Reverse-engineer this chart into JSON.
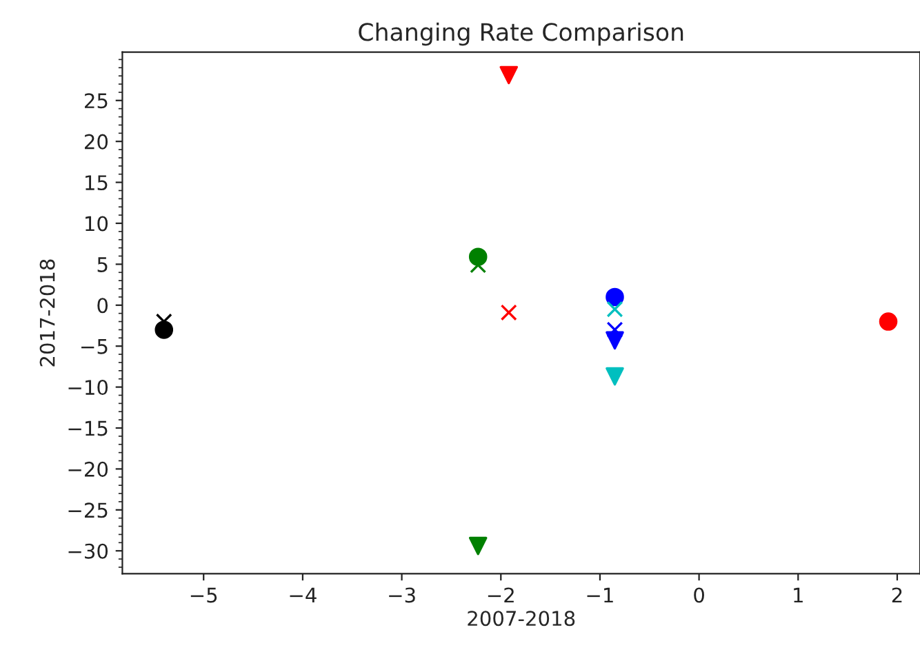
{
  "chart_data": {
    "type": "scatter",
    "title": "Changing Rate Comparison",
    "xlabel": "2007-2018",
    "ylabel": "2017-2018",
    "series": [
      {
        "color": "#000000",
        "marker": "circle",
        "x": [
          -5.4
        ],
        "values": [
          -3.0
        ]
      },
      {
        "color": "#000000",
        "marker": "cross",
        "x": [
          -5.4
        ],
        "values": [
          -2.0
        ]
      },
      {
        "color": "#008000",
        "marker": "circle",
        "x": [
          -2.23
        ],
        "values": [
          5.9
        ]
      },
      {
        "color": "#008000",
        "marker": "cross",
        "x": [
          -2.23
        ],
        "values": [
          4.9
        ]
      },
      {
        "color": "#008000",
        "marker": "triangle",
        "x": [
          -2.23
        ],
        "values": [
          -29.4
        ]
      },
      {
        "color": "#ff0000",
        "marker": "triangle",
        "x": [
          -1.92
        ],
        "values": [
          28.1
        ]
      },
      {
        "color": "#ff0000",
        "marker": "cross",
        "x": [
          -1.92
        ],
        "values": [
          -0.9
        ]
      },
      {
        "color": "#ff0000",
        "marker": "circle",
        "x": [
          1.91
        ],
        "values": [
          -2.0
        ]
      },
      {
        "color": "#0000ff",
        "marker": "circle",
        "x": [
          -0.85
        ],
        "values": [
          1.0
        ]
      },
      {
        "color": "#00bfbf",
        "marker": "cross",
        "x": [
          -0.85
        ],
        "values": [
          -0.5
        ]
      },
      {
        "color": "#0000ff",
        "marker": "cross",
        "x": [
          -0.85
        ],
        "values": [
          -3.0
        ]
      },
      {
        "color": "#0000ff",
        "marker": "triangle",
        "x": [
          -0.85
        ],
        "values": [
          -4.3
        ]
      },
      {
        "color": "#00bfbf",
        "marker": "triangle",
        "x": [
          -0.85
        ],
        "values": [
          -8.7
        ]
      }
    ],
    "xlim": [
      -5.82,
      2.23
    ],
    "ylim": [
      -32.8,
      30.9
    ],
    "xticks": [
      {
        "value": -5,
        "label": "−5"
      },
      {
        "value": -4,
        "label": "−4"
      },
      {
        "value": -3,
        "label": "−3"
      },
      {
        "value": -2,
        "label": "−2"
      },
      {
        "value": -1,
        "label": "−1"
      },
      0,
      1,
      2
    ],
    "yticks": [
      {
        "value": -30,
        "label": "−30"
      },
      {
        "value": -25,
        "label": "−25"
      },
      {
        "value": -20,
        "label": "−20"
      },
      {
        "value": -15,
        "label": "−15"
      },
      {
        "value": -10,
        "label": "−10"
      },
      {
        "value": -5,
        "label": "−5"
      },
      0,
      5,
      10,
      15,
      20,
      25
    ],
    "grid": false
  }
}
